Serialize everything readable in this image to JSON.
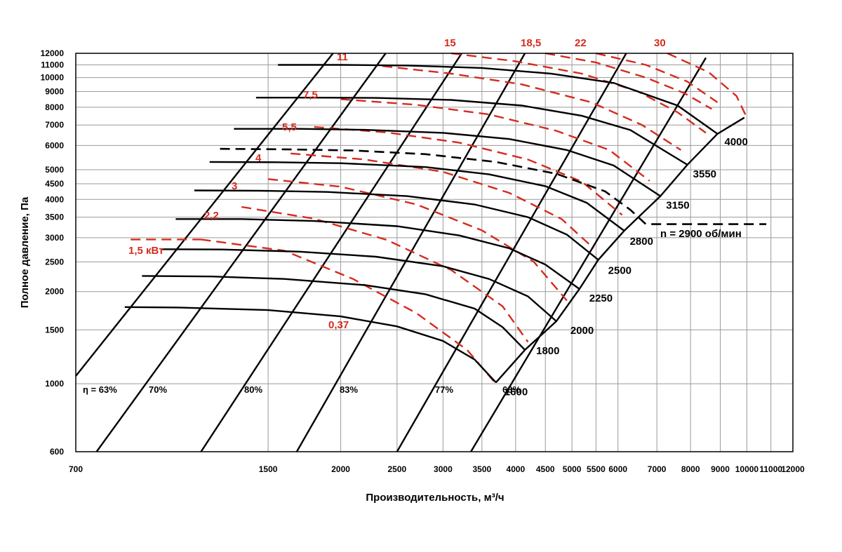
{
  "chart_data": {
    "type": "line",
    "xlabel": "Производительность, м³/ч",
    "ylabel": "Полное давление, Па",
    "x_scale": "log",
    "y_scale": "log",
    "xlim": [
      700,
      12000
    ],
    "ylim": [
      600,
      12000
    ],
    "x_ticks": [
      700,
      1500,
      2000,
      2500,
      3000,
      3500,
      4000,
      4500,
      5000,
      5500,
      6000,
      7000,
      8000,
      9000,
      10000,
      11000,
      12000
    ],
    "y_ticks": [
      600,
      1000,
      1500,
      2000,
      2500,
      3000,
      3500,
      4000,
      4500,
      5000,
      6000,
      7000,
      8000,
      9000,
      10000,
      11000,
      12000
    ],
    "grid": true,
    "colors": {
      "rpm": "#000000",
      "power": "#d52b1e",
      "motor": "#000000",
      "grid": "#9a9a9a"
    },
    "rpm_series": [
      {
        "name": "1600",
        "points": [
          [
            850,
            1780
          ],
          [
            1050,
            1775
          ],
          [
            1500,
            1740
          ],
          [
            2000,
            1660
          ],
          [
            2500,
            1540
          ],
          [
            3000,
            1380
          ],
          [
            3400,
            1200
          ],
          [
            3700,
            1010
          ]
        ]
      },
      {
        "name": "1800",
        "points": [
          [
            910,
            2250
          ],
          [
            1200,
            2240
          ],
          [
            1600,
            2200
          ],
          [
            2200,
            2100
          ],
          [
            2800,
            1960
          ],
          [
            3400,
            1760
          ],
          [
            3800,
            1530
          ],
          [
            4150,
            1290
          ]
        ]
      },
      {
        "name": "2000",
        "points": [
          [
            980,
            2750
          ],
          [
            1250,
            2745
          ],
          [
            1700,
            2700
          ],
          [
            2300,
            2600
          ],
          [
            3000,
            2420
          ],
          [
            3600,
            2200
          ],
          [
            4200,
            1930
          ],
          [
            4700,
            1600
          ]
        ]
      },
      {
        "name": "2250",
        "points": [
          [
            1040,
            3450
          ],
          [
            1350,
            3450
          ],
          [
            1800,
            3400
          ],
          [
            2500,
            3270
          ],
          [
            3200,
            3050
          ],
          [
            3900,
            2770
          ],
          [
            4500,
            2450
          ],
          [
            5150,
            2040
          ]
        ]
      },
      {
        "name": "2500",
        "points": [
          [
            1120,
            4280
          ],
          [
            1450,
            4270
          ],
          [
            1900,
            4230
          ],
          [
            2600,
            4100
          ],
          [
            3400,
            3850
          ],
          [
            4200,
            3500
          ],
          [
            4900,
            3070
          ],
          [
            5550,
            2540
          ]
        ]
      },
      {
        "name": "2800",
        "points": [
          [
            1190,
            5300
          ],
          [
            1550,
            5290
          ],
          [
            2000,
            5250
          ],
          [
            2800,
            5100
          ],
          [
            3600,
            4830
          ],
          [
            4500,
            4420
          ],
          [
            5300,
            3900
          ],
          [
            6150,
            3160
          ]
        ]
      },
      {
        "name": "3150",
        "points": [
          [
            1310,
            6800
          ],
          [
            1700,
            6800
          ],
          [
            2200,
            6750
          ],
          [
            3000,
            6600
          ],
          [
            3900,
            6300
          ],
          [
            4900,
            5800
          ],
          [
            5900,
            5160
          ],
          [
            7100,
            4100
          ]
        ]
      },
      {
        "name": "3550",
        "points": [
          [
            1430,
            8600
          ],
          [
            1800,
            8600
          ],
          [
            2300,
            8580
          ],
          [
            3100,
            8450
          ],
          [
            4100,
            8100
          ],
          [
            5200,
            7500
          ],
          [
            6300,
            6740
          ],
          [
            7900,
            5190
          ]
        ]
      },
      {
        "name": "4000",
        "points": [
          [
            1560,
            11000
          ],
          [
            2000,
            11000
          ],
          [
            2600,
            10950
          ],
          [
            3500,
            10750
          ],
          [
            4600,
            10300
          ],
          [
            5900,
            9600
          ],
          [
            7600,
            8100
          ],
          [
            8900,
            6550
          ]
        ]
      }
    ],
    "motor_curve": {
      "name": "n = 2900 об/мин",
      "points": [
        [
          1240,
          5850
        ],
        [
          1600,
          5830
        ],
        [
          2100,
          5780
        ],
        [
          2800,
          5620
        ],
        [
          3700,
          5300
        ],
        [
          4700,
          4850
        ],
        [
          5700,
          4250
        ],
        [
          6300,
          3700
        ],
        [
          6700,
          3320
        ],
        [
          7200,
          3320
        ],
        [
          9500,
          3320
        ],
        [
          10800,
          3320
        ]
      ]
    },
    "efficiency_lines": [
      {
        "name": "η = 63%",
        "points": [
          [
            700,
            1060
          ],
          [
            1940,
            12000
          ]
        ]
      },
      {
        "name": "70%",
        "points": [
          [
            760,
            600
          ],
          [
            2390,
            12000
          ]
        ]
      },
      {
        "name": "80%",
        "points": [
          [
            1150,
            600
          ],
          [
            3230,
            12000
          ]
        ]
      },
      {
        "name": "83%",
        "points": [
          [
            1680,
            600
          ],
          [
            4150,
            12000
          ]
        ]
      },
      {
        "name": "77%",
        "points": [
          [
            2500,
            600
          ],
          [
            6200,
            12000
          ]
        ]
      },
      {
        "name": "68%",
        "points": [
          [
            3350,
            600
          ],
          [
            8500,
            11600
          ]
        ]
      }
    ],
    "rpm_end_line": {
      "points": [
        [
          3700,
          1010
        ],
        [
          4150,
          1290
        ],
        [
          4700,
          1600
        ],
        [
          5150,
          2040
        ],
        [
          5550,
          2540
        ],
        [
          6150,
          3160
        ],
        [
          7100,
          4100
        ],
        [
          7900,
          5190
        ],
        [
          8900,
          6550
        ],
        [
          9900,
          7400
        ]
      ]
    },
    "power_curves": [
      {
        "name": "1,5 кВт",
        "points": [
          [
            870,
            2960
          ],
          [
            1150,
            2960
          ]
        ]
      },
      {
        "name": "0,37",
        "points": [
          [
            1150,
            2960
          ],
          [
            1600,
            2720
          ],
          [
            2100,
            2200
          ],
          [
            2700,
            1700
          ],
          [
            3300,
            1290
          ],
          [
            3700,
            1000
          ]
        ]
      },
      {
        "name": "2,2",
        "points": [
          [
            1350,
            3780
          ],
          [
            1800,
            3460
          ],
          [
            2400,
            2950
          ],
          [
            3100,
            2350
          ],
          [
            3800,
            1790
          ],
          [
            4200,
            1370
          ]
        ]
      },
      {
        "name": "3",
        "points": [
          [
            1500,
            4660
          ],
          [
            2000,
            4400
          ],
          [
            2700,
            3850
          ],
          [
            3500,
            3170
          ],
          [
            4300,
            2500
          ],
          [
            4900,
            1870
          ]
        ]
      },
      {
        "name": "4",
        "points": [
          [
            1640,
            5650
          ],
          [
            2200,
            5400
          ],
          [
            3000,
            4920
          ],
          [
            3900,
            4200
          ],
          [
            4800,
            3450
          ],
          [
            5450,
            2770
          ]
        ]
      },
      {
        "name": "5,5",
        "points": [
          [
            1800,
            6900
          ],
          [
            2400,
            6620
          ],
          [
            3200,
            6130
          ],
          [
            4200,
            5400
          ],
          [
            5200,
            4570
          ],
          [
            6100,
            3560
          ]
        ]
      },
      {
        "name": "7,5",
        "points": [
          [
            2000,
            8500
          ],
          [
            2700,
            8150
          ],
          [
            3600,
            7580
          ],
          [
            4700,
            6700
          ],
          [
            5800,
            5800
          ],
          [
            6800,
            4600
          ]
        ]
      },
      {
        "name": "11",
        "points": [
          [
            2360,
            10900
          ],
          [
            3100,
            10300
          ],
          [
            4100,
            9500
          ],
          [
            5400,
            8300
          ],
          [
            6600,
            7000
          ],
          [
            7700,
            5800
          ]
        ]
      },
      {
        "name": "15",
        "points": [
          [
            3100,
            12000
          ],
          [
            4000,
            11300
          ],
          [
            5200,
            10300
          ],
          [
            6500,
            9000
          ],
          [
            7600,
            7700
          ],
          [
            8500,
            6600
          ]
        ]
      },
      {
        "name": "18,5",
        "points": [
          [
            4500,
            12000
          ],
          [
            5500,
            11200
          ],
          [
            6700,
            10000
          ],
          [
            7800,
            8900
          ],
          [
            8700,
            7900
          ]
        ]
      },
      {
        "name": "22",
        "points": [
          [
            5500,
            12000
          ],
          [
            6700,
            11000
          ],
          [
            7900,
            9700
          ],
          [
            8900,
            8300
          ]
        ]
      },
      {
        "name": "30",
        "points": [
          [
            7300,
            12000
          ],
          [
            8600,
            10400
          ],
          [
            9600,
            8700
          ],
          [
            10000,
            7400
          ]
        ]
      }
    ]
  }
}
